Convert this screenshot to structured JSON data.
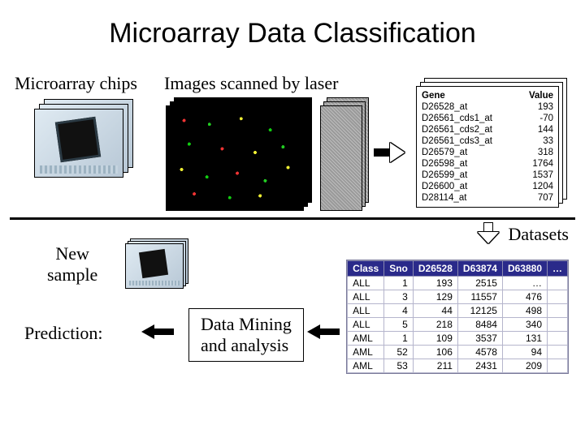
{
  "title": "Microarray Data  Classification",
  "labels": {
    "chips": "Microarray chips",
    "scanned": "Images scanned by laser",
    "new_sample": "New\nsample",
    "prediction": "Prediction:",
    "datasets": "Datasets",
    "data_mining": "Data Mining\nand analysis"
  },
  "gene_table": {
    "headers": {
      "gene": "Gene",
      "value": "Value"
    },
    "rows": [
      {
        "gene": "D26528_at",
        "value": "193"
      },
      {
        "gene": "D26561_cds1_at",
        "value": "-70"
      },
      {
        "gene": "D26561_cds2_at",
        "value": "144"
      },
      {
        "gene": "D26561_cds3_at",
        "value": "33"
      },
      {
        "gene": "D26579_at",
        "value": "318"
      },
      {
        "gene": "D26598_at",
        "value": "1764"
      },
      {
        "gene": "D26599_at",
        "value": "1537"
      },
      {
        "gene": "D26600_at",
        "value": "1204"
      },
      {
        "gene": "D28114_at",
        "value": "707"
      }
    ]
  },
  "dataset_table": {
    "columns": [
      "Class",
      "Sno",
      "D26528",
      "D63874",
      "D63880",
      "…"
    ],
    "rows": [
      [
        "ALL",
        "1",
        "193",
        "2515",
        "…"
      ],
      [
        "ALL",
        "3",
        "129",
        "11557",
        "476"
      ],
      [
        "ALL",
        "4",
        "44",
        "12125",
        "498"
      ],
      [
        "ALL",
        "5",
        "218",
        "8484",
        "340"
      ],
      [
        "AML",
        "1",
        "109",
        "3537",
        "131"
      ],
      [
        "AML",
        "52",
        "106",
        "4578",
        "94"
      ],
      [
        "AML",
        "53",
        "211",
        "2431",
        "209"
      ]
    ],
    "header_bg": "#2a2a8a",
    "header_fg": "#ffffff"
  },
  "colors": {
    "text": "#000000",
    "border": "#000000",
    "table_header_bg": "#2a2a8a",
    "table_header_fg": "#ffffff"
  }
}
